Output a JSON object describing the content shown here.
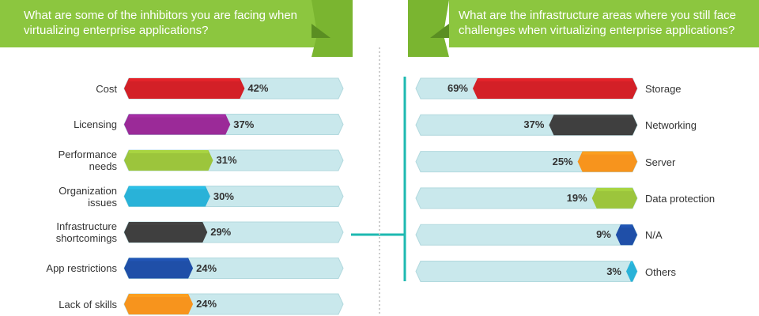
{
  "left_panel": {
    "question": "What are some of the inhibitors you are facing when virtualizing enterprise applications?"
  },
  "right_panel": {
    "question": "What are the infrastructure areas where you still face challenges when virtualizing enterprise applications?"
  },
  "colors": {
    "header_green": "#8cc63f",
    "track": "#c9e8ec",
    "connector": "#1db9b0"
  },
  "chart_data": [
    {
      "type": "bar",
      "orientation": "horizontal",
      "title": "What are some of the inhibitors you are facing when virtualizing enterprise applications?",
      "categories": [
        "Cost",
        "Licensing",
        "Performance needs",
        "Organization issues",
        "Infrastructure shortcomings",
        "App restrictions",
        "Lack of skills"
      ],
      "display_labels": [
        [
          "Cost"
        ],
        [
          "Licensing"
        ],
        [
          "Performance",
          "needs"
        ],
        [
          "Organization",
          "issues"
        ],
        [
          "Infrastructure",
          "shortcomings"
        ],
        [
          "App restrictions"
        ],
        [
          "Lack of skills"
        ]
      ],
      "values": [
        42,
        37,
        31,
        30,
        29,
        24,
        24
      ],
      "value_labels": [
        "42%",
        "37%",
        "31%",
        "30%",
        "29%",
        "24%",
        "24%"
      ],
      "colors": [
        "#d32027",
        "#9b2a98",
        "#9cc53c",
        "#29b2d8",
        "#3f3f3f",
        "#1f4fa8",
        "#f7941d"
      ],
      "xlim": [
        0,
        100
      ]
    },
    {
      "type": "bar",
      "orientation": "horizontal",
      "title": "What are the infrastructure areas where you still face challenges when virtualizing enterprise applications?",
      "categories": [
        "Storage",
        "Networking",
        "Server",
        "Data protection",
        "N/A",
        "Others"
      ],
      "values": [
        69,
        37,
        25,
        19,
        9,
        3
      ],
      "value_labels": [
        "69%",
        "37%",
        "25%",
        "19%",
        "9%",
        "3%"
      ],
      "colors": [
        "#d32027",
        "#3f3f3f",
        "#f7941d",
        "#9cc53c",
        "#1f4fa8",
        "#29b2d8"
      ],
      "xlim": [
        0,
        100
      ]
    }
  ]
}
